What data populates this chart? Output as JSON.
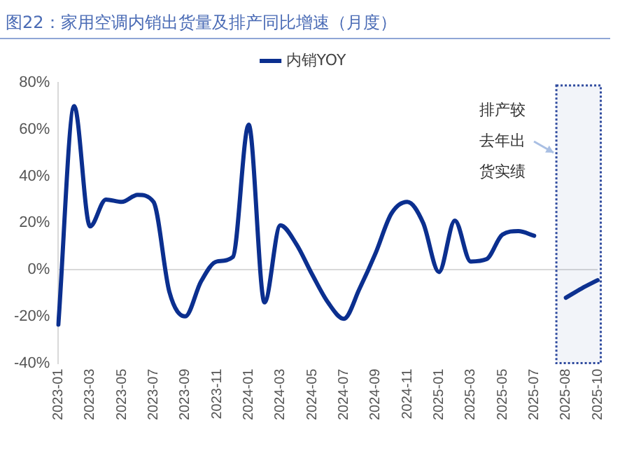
{
  "chart_data": {
    "type": "line",
    "title": "图22：家用空调内销出货量及排产同比增速（月度）",
    "categories": [
      "2023-01",
      null,
      "2023-03",
      null,
      "2023-05",
      null,
      "2023-07",
      null,
      "2023-09",
      null,
      "2023-11",
      null,
      "2024-01",
      null,
      "2024-03",
      null,
      "2024-05",
      null,
      "2024-07",
      null,
      "2024-09",
      null,
      "2024-11",
      null,
      "2025-01",
      null,
      "2025-03",
      null,
      "2025-05",
      null,
      "2025-07",
      null,
      "2025-08",
      null,
      "2025-10"
    ],
    "series": [
      {
        "name": "内销YOY",
        "color": "#0b2f8f",
        "values": [
          -23.5,
          70,
          18.5,
          30,
          29,
          32,
          29,
          -9.5,
          -20,
          -5,
          3.5,
          5.4,
          62,
          -14,
          19,
          11,
          -2,
          -14,
          -21,
          -8,
          7,
          24,
          29,
          20,
          -1,
          21,
          3.5,
          4.5,
          15,
          16.5,
          14.5,
          null,
          -12,
          -8,
          -4.5
        ]
      }
    ],
    "ylim": [
      -40,
      80
    ],
    "yticks": [
      {
        "value": -40,
        "label": "-40%"
      },
      {
        "value": -20,
        "label": "-20%"
      },
      {
        "value": 0,
        "label": "0%"
      },
      {
        "value": 20,
        "label": "20%"
      },
      {
        "value": 40,
        "label": "40%"
      },
      {
        "value": 60,
        "label": "60%"
      },
      {
        "value": 80,
        "label": "80%"
      }
    ],
    "bands": [
      {
        "axis": "x",
        "from": "2025-08",
        "to": "2025-10",
        "label": "排产较去年出货实绩",
        "color": "#2e4a9e"
      }
    ],
    "legend": "top",
    "marker": "none",
    "line_style": "solid"
  }
}
